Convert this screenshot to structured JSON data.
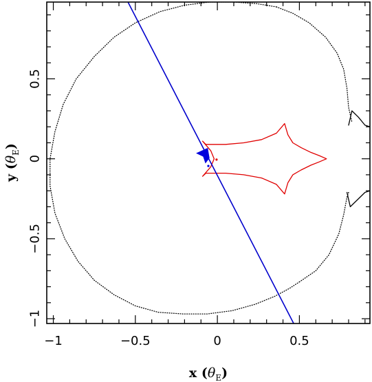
{
  "chart_data": {
    "type": "line",
    "xlabel": {
      "main": "x",
      "symbol": "θ",
      "subscript": "E"
    },
    "ylabel": {
      "main": "y",
      "symbol": "θ",
      "subscript": "E"
    },
    "xlim": [
      -1.04,
      0.93
    ],
    "ylim": [
      -1.03,
      0.98
    ],
    "x_ticks": [
      -1,
      -0.5,
      0,
      0.5
    ],
    "x_tick_labels": [
      "−1",
      "−0.5",
      "0",
      "0.5"
    ],
    "y_ticks": [
      -1,
      -0.5,
      0,
      0.5
    ],
    "y_tick_labels": [
      "−1",
      "−0.5",
      "0",
      "0.5"
    ],
    "grid": false,
    "series": [
      {
        "kind": "critical-curve",
        "color": "#000000",
        "style": "dotted",
        "x": [
          0.36,
          0.24,
          0.1,
          -0.05,
          -0.2,
          -0.35,
          -0.5,
          -0.63,
          -0.75,
          -0.86,
          -0.94,
          -0.99,
          -1.02,
          -1.02,
          -0.99,
          -0.93,
          -0.85,
          -0.75,
          -0.63,
          -0.5,
          -0.36,
          -0.21,
          -0.06,
          0.09,
          0.23,
          0.35,
          0.44,
          0.5
        ],
        "y": [
          0.95,
          0.97,
          0.98,
          0.98,
          0.96,
          0.92,
          0.85,
          0.76,
          0.64,
          0.5,
          0.34,
          0.17,
          0.0,
          -0.17,
          -0.34,
          -0.5,
          -0.64,
          -0.76,
          -0.85,
          -0.92,
          -0.96,
          -0.97,
          -0.97,
          -0.95,
          -0.91,
          -0.86,
          -0.81,
          -0.77
        ]
      },
      {
        "kind": "critical-curve",
        "color": "#000000",
        "style": "dotted",
        "x": [
          0.36,
          0.46,
          0.56,
          0.66,
          0.73,
          0.77,
          0.79,
          0.8,
          0.82
        ],
        "y": [
          0.95,
          0.91,
          0.85,
          0.76,
          0.66,
          0.56,
          0.44,
          0.32,
          0.23
        ]
      },
      {
        "kind": "critical-curve",
        "color": "#000000",
        "style": "dotted",
        "x": [
          0.5,
          0.6,
          0.68,
          0.74,
          0.77,
          0.79,
          0.8
        ],
        "y": [
          -0.77,
          -0.7,
          -0.6,
          -0.47,
          -0.35,
          -0.24,
          -0.21
        ]
      },
      {
        "kind": "critical-curve",
        "color": "#000000",
        "style": "solid",
        "x": [
          0.8,
          0.82,
          0.86,
          0.9,
          0.93
        ],
        "y": [
          0.21,
          0.3,
          0.26,
          0.21,
          0.2
        ]
      },
      {
        "kind": "critical-curve",
        "color": "#000000",
        "style": "solid",
        "x": [
          0.79,
          0.81,
          0.85,
          0.9,
          0.93
        ],
        "y": [
          -0.21,
          -0.3,
          -0.26,
          -0.21,
          -0.2
        ]
      },
      {
        "kind": "caustic",
        "color": "#e00000",
        "style": "solid",
        "x": [
          0.41,
          0.43,
          0.46,
          0.51,
          0.57,
          0.62,
          0.665,
          0.62,
          0.57,
          0.51,
          0.46,
          0.43,
          0.41,
          0.36,
          0.27,
          0.16,
          0.05,
          -0.02,
          -0.07,
          -0.09,
          -0.04,
          -0.02,
          -0.04,
          -0.09,
          -0.07,
          -0.02,
          0.05,
          0.16,
          0.27,
          0.36,
          0.41
        ],
        "y": [
          0.22,
          0.15,
          0.1,
          0.07,
          0.04,
          0.02,
          0.0,
          -0.02,
          -0.04,
          -0.07,
          -0.1,
          -0.15,
          -0.22,
          -0.16,
          -0.12,
          -0.1,
          -0.09,
          -0.09,
          -0.09,
          -0.11,
          -0.05,
          0.0,
          0.05,
          0.11,
          0.09,
          0.09,
          0.09,
          0.1,
          0.12,
          0.16,
          0.22
        ]
      },
      {
        "kind": "source-trajectory",
        "color": "#0000cc",
        "style": "solid",
        "x": [
          -0.545,
          0.465
        ],
        "y": [
          0.98,
          -1.03
        ]
      },
      {
        "kind": "caustic-detail",
        "color": "#000000",
        "style": "solid",
        "x": [
          -0.07,
          -0.075,
          -0.078,
          -0.075,
          -0.068
        ],
        "y": [
          0.01,
          0.005,
          0.0,
          -0.008,
          -0.01
        ]
      }
    ],
    "markers": [
      {
        "kind": "source-blue-filled",
        "color": "#0000dd",
        "x": [
          -0.125,
          -0.06,
          -0.05,
          -0.072,
          -0.085
        ],
        "y": [
          0.035,
          0.065,
          0.005,
          -0.025,
          0.015
        ]
      },
      {
        "kind": "source-blue-dot",
        "color": "#0000dd",
        "x": [
          -0.055
        ],
        "y": [
          -0.045
        ]
      },
      {
        "kind": "source-red-dot",
        "color": "#e00000",
        "x": [
          -0.005
        ],
        "y": [
          -0.005
        ]
      }
    ]
  }
}
